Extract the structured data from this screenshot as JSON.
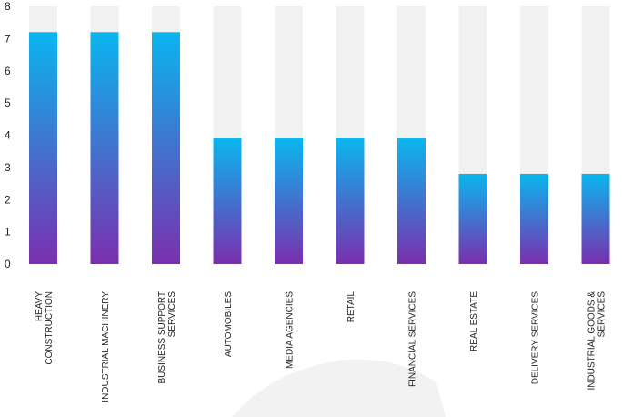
{
  "chart_data": {
    "type": "bar",
    "title": "",
    "xlabel": "",
    "ylabel": "",
    "ylim": [
      0,
      8
    ],
    "yticks": [
      0,
      1,
      2,
      3,
      4,
      5,
      6,
      7,
      8
    ],
    "grid": false,
    "legend": "none",
    "categories": [
      [
        "HEAVY",
        "CONSTRUCTION"
      ],
      [
        "INDUSTRIAL MACHINERY"
      ],
      [
        "BUSINESS SUPPORT",
        "SERVICES"
      ],
      [
        "AUTOMOBILES"
      ],
      [
        "MEDIA AGENCIES"
      ],
      [
        "RETAIL"
      ],
      [
        "FINANCIAL SERVICES"
      ],
      [
        "REAL ESTATE"
      ],
      [
        "DELIVERY SERVICES"
      ],
      [
        "INDUSTRIAL GOODS &",
        "SERVICES"
      ]
    ],
    "values": [
      7.2,
      7.2,
      7.2,
      3.9,
      3.9,
      3.9,
      3.9,
      2.8,
      2.8,
      2.8
    ],
    "colors": {
      "bar_top": "#0ab6ef",
      "bar_bottom": "#7a2fae",
      "bar_background": "#f1f1f1",
      "watermark": "#f2f2f2"
    }
  }
}
